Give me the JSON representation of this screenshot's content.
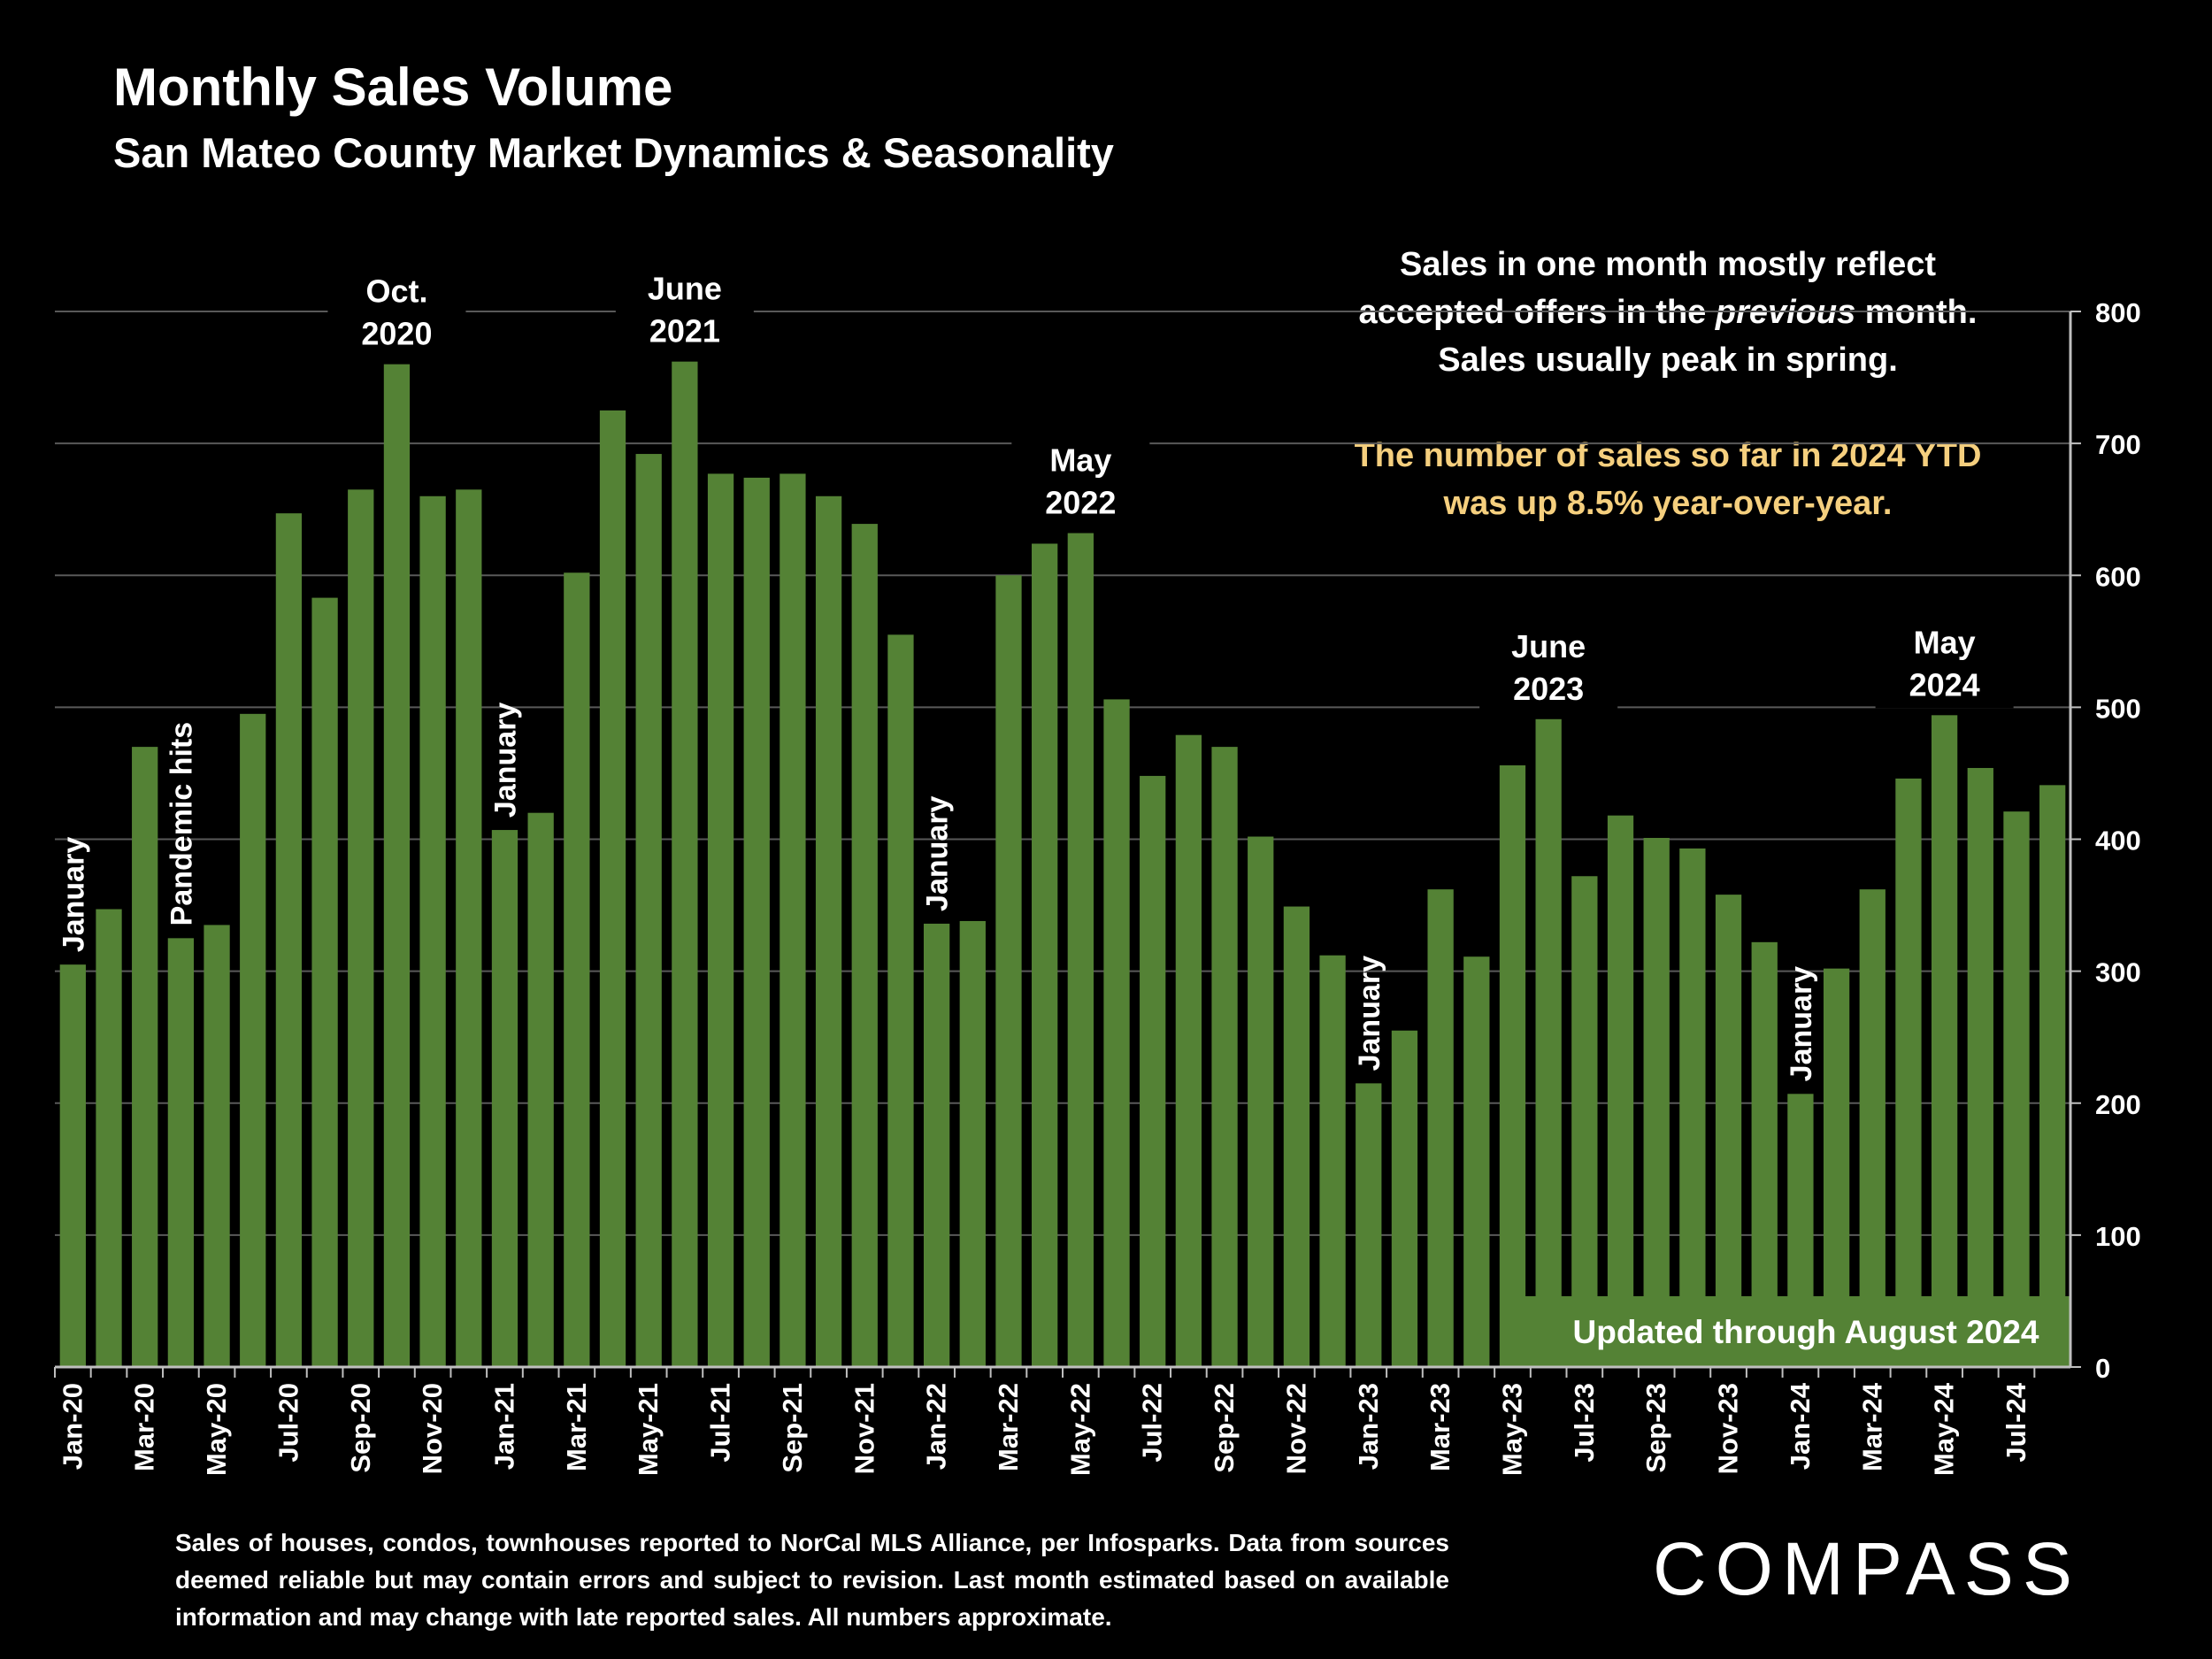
{
  "title": "Monthly Sales Volume",
  "subtitle": "San Mateo County Market Dynamics & Seasonality",
  "note": {
    "line1": "Sales in one month mostly reflect",
    "line2_pre": "accepted offers in the ",
    "line2_em": "previous",
    "line2_post": " month.",
    "line3": "Sales usually peak in spring.",
    "highlight1": "The number of sales so far in 2024 YTD",
    "highlight2": "was up 8.5% year-over-year."
  },
  "updated_label": "Updated through August 2024",
  "footnote": "Sales of houses, condos, townhouses reported to NorCal MLS Alliance, per Infosparks. Data from sources deemed reliable but may contain errors and subject to revision. Last month estimated based on available information and may change with late reported sales. All numbers approximate.",
  "logo": "COMPASS",
  "colors": {
    "bar": "#548235",
    "background": "#000000",
    "highlight_text": "#f5cf7e",
    "grid": "#595959"
  },
  "chart_data": {
    "type": "bar",
    "ylim": [
      0,
      800
    ],
    "yticks": [
      0,
      100,
      200,
      300,
      400,
      500,
      600,
      700,
      800
    ],
    "y_axis_side": "right",
    "grid": true,
    "categories": [
      "Jan-20",
      "Feb-20",
      "Mar-20",
      "Apr-20",
      "May-20",
      "Jun-20",
      "Jul-20",
      "Aug-20",
      "Sep-20",
      "Oct-20",
      "Nov-20",
      "Dec-20",
      "Jan-21",
      "Feb-21",
      "Mar-21",
      "Apr-21",
      "May-21",
      "Jun-21",
      "Jul-21",
      "Aug-21",
      "Sep-21",
      "Oct-21",
      "Nov-21",
      "Dec-21",
      "Jan-22",
      "Feb-22",
      "Mar-22",
      "Apr-22",
      "May-22",
      "Jun-22",
      "Jul-22",
      "Aug-22",
      "Sep-22",
      "Oct-22",
      "Nov-22",
      "Dec-22",
      "Jan-23",
      "Feb-23",
      "Mar-23",
      "Apr-23",
      "May-23",
      "Jun-23",
      "Jul-23",
      "Aug-23",
      "Sep-23",
      "Oct-23",
      "Nov-23",
      "Dec-23",
      "Jan-24",
      "Feb-24",
      "Mar-24",
      "Apr-24",
      "May-24",
      "Jun-24",
      "Jul-24",
      "Aug-24"
    ],
    "values": [
      305,
      347,
      470,
      325,
      335,
      495,
      647,
      583,
      665,
      760,
      660,
      665,
      407,
      420,
      602,
      725,
      692,
      762,
      677,
      674,
      677,
      660,
      639,
      555,
      336,
      338,
      600,
      624,
      632,
      506,
      448,
      479,
      470,
      402,
      349,
      312,
      215,
      255,
      362,
      311,
      456,
      491,
      372,
      418,
      401,
      393,
      358,
      322,
      207,
      302,
      362,
      446,
      494,
      454,
      421,
      441
    ],
    "tick_labels": [
      "Jan-20",
      "Mar-20",
      "May-20",
      "Jul-20",
      "Sep-20",
      "Nov-20",
      "Jan-21",
      "Mar-21",
      "May-21",
      "Jul-21",
      "Sep-21",
      "Nov-21",
      "Jan-22",
      "Mar-22",
      "May-22",
      "Jul-22",
      "Sep-22",
      "Nov-22",
      "Jan-23",
      "Mar-23",
      "May-23",
      "Jul-23",
      "Sep-23",
      "Nov-23",
      "Jan-24",
      "Mar-24",
      "May-24",
      "Jul-24"
    ],
    "annotations": [
      {
        "index": 0,
        "text": "January",
        "rotated": true
      },
      {
        "index": 3,
        "text": "Pandemic hits",
        "rotated": true
      },
      {
        "index": 12,
        "text": "January",
        "rotated": true
      },
      {
        "index": 24,
        "text": "January",
        "rotated": true
      },
      {
        "index": 36,
        "text": "January",
        "rotated": true
      },
      {
        "index": 48,
        "text": "January",
        "rotated": true
      },
      {
        "index": 9,
        "lines": [
          "Oct.",
          "2020"
        ],
        "rotated": false
      },
      {
        "index": 17,
        "lines": [
          "June",
          "2021"
        ],
        "rotated": false
      },
      {
        "index": 28,
        "lines": [
          "May",
          "2022"
        ],
        "rotated": false
      },
      {
        "index": 41,
        "lines": [
          "June",
          "2023"
        ],
        "rotated": false
      },
      {
        "index": 52,
        "lines": [
          "May",
          "2024"
        ],
        "rotated": false
      }
    ]
  }
}
